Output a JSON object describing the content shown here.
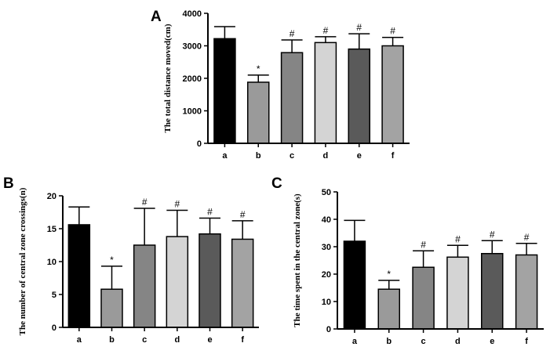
{
  "chart_data": [
    {
      "panel": "A",
      "type": "bar",
      "ylabel": "The total distance moved(cm)",
      "categories": [
        "a",
        "b",
        "c",
        "d",
        "e",
        "f"
      ],
      "values": [
        3220,
        1880,
        2790,
        3100,
        2900,
        3000
      ],
      "errors": [
        370,
        220,
        390,
        180,
        470,
        260
      ],
      "annotations": [
        "",
        "*",
        "#",
        "#",
        "#",
        "#"
      ],
      "ylim": [
        0,
        4000
      ],
      "yticks": [
        "0",
        "1000",
        "2000",
        "3000",
        "4000"
      ],
      "colors": [
        "#000000",
        "#9a9a9a",
        "#858585",
        "#d4d4d4",
        "#5a5a5a",
        "#a3a3a3"
      ]
    },
    {
      "panel": "B",
      "type": "bar",
      "ylabel": "The number of central zone crossings(n)",
      "categories": [
        "a",
        "b",
        "c",
        "d",
        "e",
        "f"
      ],
      "values": [
        15.6,
        5.8,
        12.5,
        13.8,
        14.2,
        13.4
      ],
      "errors": [
        2.7,
        3.5,
        5.6,
        4.0,
        2.4,
        2.8
      ],
      "annotations": [
        "",
        "*",
        "#",
        "#",
        "#",
        "#"
      ],
      "ylim": [
        0,
        20
      ],
      "yticks": [
        "0",
        "5",
        "10",
        "15",
        "20"
      ],
      "colors": [
        "#000000",
        "#9a9a9a",
        "#858585",
        "#d4d4d4",
        "#5a5a5a",
        "#a3a3a3"
      ]
    },
    {
      "panel": "C",
      "type": "bar",
      "ylabel": "The time spent in the central zone(s)",
      "categories": [
        "a",
        "b",
        "c",
        "d",
        "e",
        "f"
      ],
      "values": [
        32.0,
        14.5,
        22.5,
        26.2,
        27.5,
        27.0
      ],
      "errors": [
        7.6,
        3.2,
        6.0,
        4.3,
        4.7,
        4.2
      ],
      "annotations": [
        "",
        "*",
        "#",
        "#",
        "#",
        "#"
      ],
      "ylim": [
        0,
        50
      ],
      "yticks": [
        "0",
        "10",
        "20",
        "30",
        "40",
        "50"
      ],
      "colors": [
        "#000000",
        "#9a9a9a",
        "#858585",
        "#d4d4d4",
        "#5a5a5a",
        "#a3a3a3"
      ]
    }
  ]
}
